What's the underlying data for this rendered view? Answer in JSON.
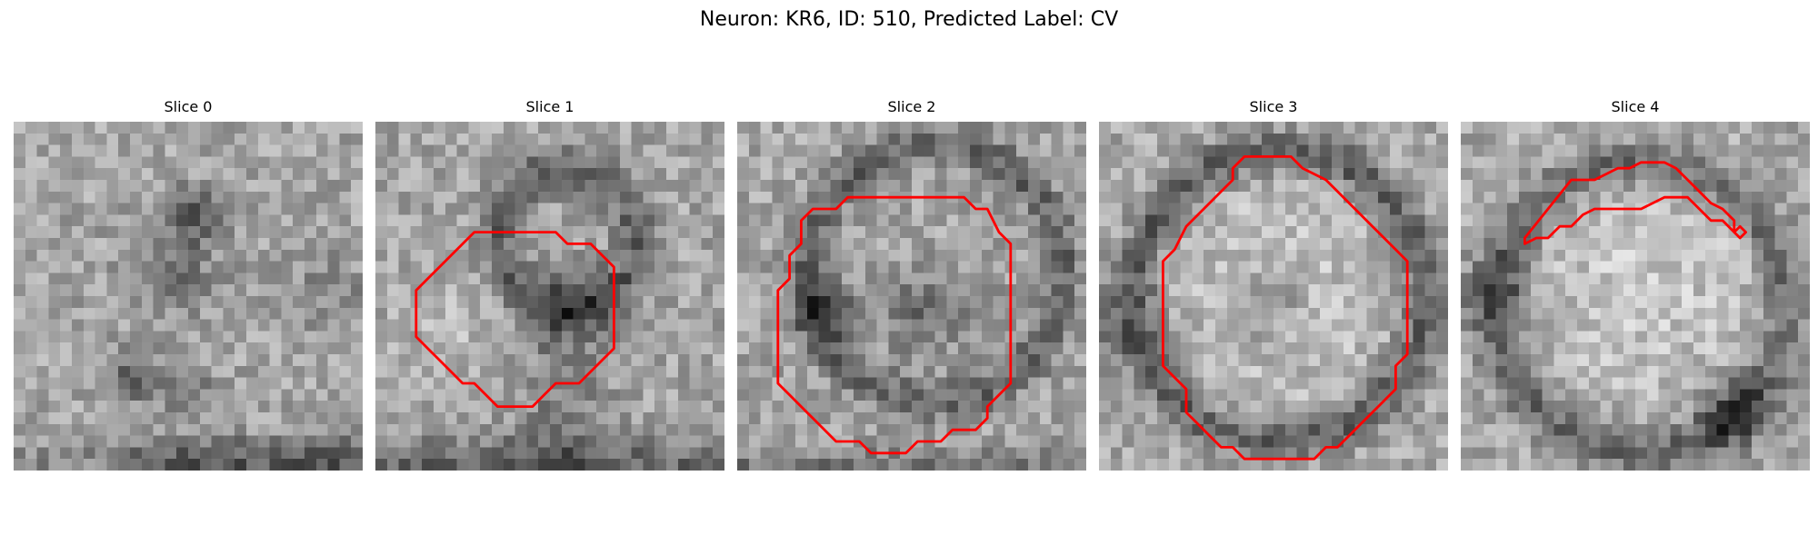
{
  "figure": {
    "title": "Neuron: KR6, ID: 510, Predicted Label: CV"
  },
  "slices": [
    {
      "title": "Slice 0",
      "has_contour": false
    },
    {
      "title": "Slice 1",
      "has_contour": true
    },
    {
      "title": "Slice 2",
      "has_contour": true
    },
    {
      "title": "Slice 3",
      "has_contour": true
    },
    {
      "title": "Slice 4",
      "has_contour": true
    }
  ],
  "colors": {
    "background": "#ffffff",
    "contour": "#ff0000",
    "image_colormap": "grayscale"
  }
}
